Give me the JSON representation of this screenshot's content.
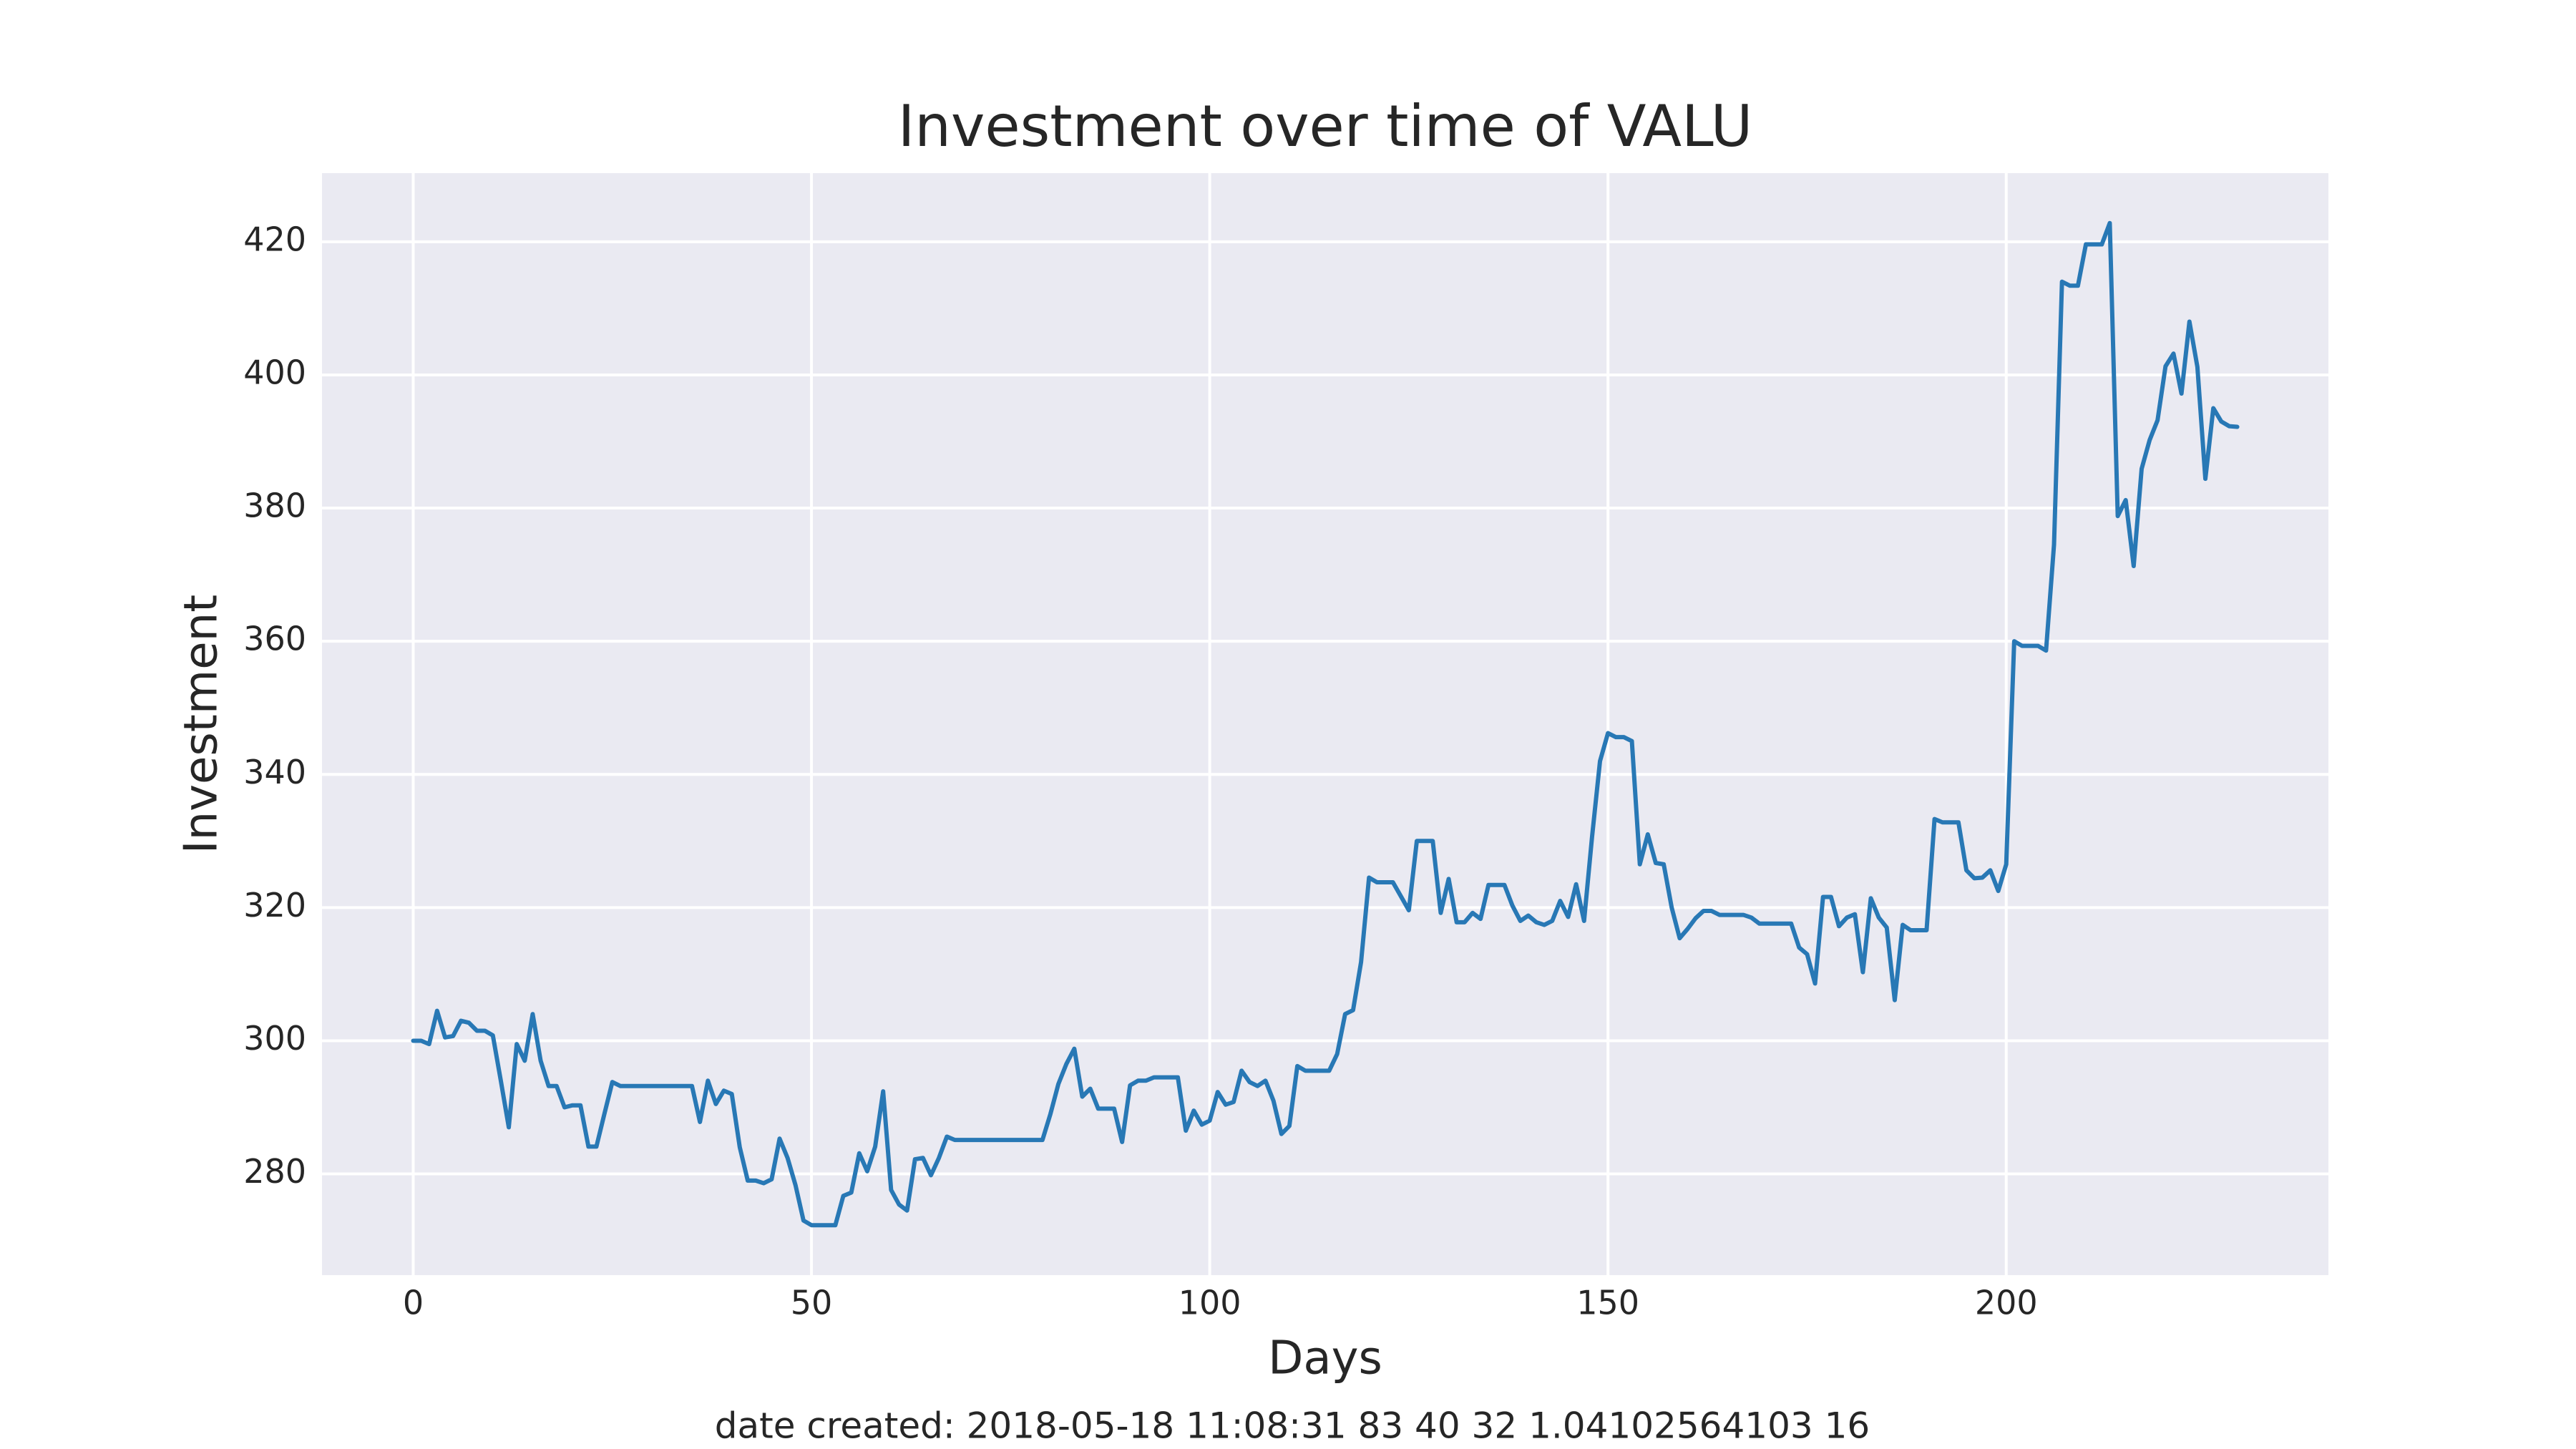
{
  "chart_data": {
    "type": "line",
    "title": "Investment over time of VALU",
    "xlabel": "Days",
    "ylabel": "Investment",
    "annotation": "date created: 2018-05-18 11:08:31 83 40 32 1.04102564103 16",
    "color": "#2878b5",
    "grid": true,
    "xlim": [
      -11.45,
      240.45
    ],
    "ylim": [
      264.8,
      430.3
    ],
    "xticks": [
      0,
      50,
      100,
      150,
      200
    ],
    "yticks": [
      280,
      300,
      320,
      340,
      360,
      380,
      400,
      420
    ],
    "x": [
      0,
      1,
      2,
      3,
      4,
      5,
      6,
      7,
      8,
      9,
      10,
      11,
      12,
      13,
      14,
      15,
      16,
      17,
      18,
      19,
      20,
      21,
      22,
      23,
      24,
      25,
      26,
      27,
      28,
      29,
      30,
      31,
      32,
      33,
      34,
      35,
      36,
      37,
      38,
      39,
      40,
      41,
      42,
      43,
      44,
      45,
      46,
      47,
      48,
      49,
      50,
      51,
      52,
      53,
      54,
      55,
      56,
      57,
      58,
      59,
      60,
      61,
      62,
      63,
      64,
      65,
      66,
      67,
      68,
      69,
      70,
      71,
      72,
      73,
      74,
      75,
      76,
      77,
      78,
      79,
      80,
      81,
      82,
      83,
      84,
      85,
      86,
      87,
      88,
      89,
      90,
      91,
      92,
      93,
      94,
      95,
      96,
      97,
      98,
      99,
      100,
      101,
      102,
      103,
      104,
      105,
      106,
      107,
      108,
      109,
      110,
      111,
      112,
      113,
      114,
      115,
      116,
      117,
      118,
      119,
      120,
      121,
      122,
      123,
      124,
      125,
      126,
      127,
      128,
      129,
      130,
      131,
      132,
      133,
      134,
      135,
      136,
      137,
      138,
      139,
      140,
      141,
      142,
      143,
      144,
      145,
      146,
      147,
      148,
      149,
      150,
      151,
      152,
      153,
      154,
      155,
      156,
      157,
      158,
      159,
      160,
      161,
      162,
      163,
      164,
      165,
      166,
      167,
      168,
      169,
      170,
      171,
      172,
      173,
      174,
      175,
      176,
      177,
      178,
      179,
      180,
      181,
      182,
      183,
      184,
      185,
      186,
      187,
      188,
      189,
      190,
      191,
      192,
      193,
      194,
      195,
      196,
      197,
      198,
      199,
      200,
      201,
      202,
      203,
      204,
      205,
      206,
      207,
      208,
      209,
      210,
      211,
      212,
      213,
      214,
      215,
      216,
      217,
      218,
      219,
      220,
      221,
      222,
      223,
      224,
      225,
      226,
      227,
      228,
      229
    ],
    "values": [
      300,
      300,
      299.5,
      304.5,
      300.5,
      300.7,
      303,
      302.7,
      301.5,
      301.5,
      300.8,
      294,
      287,
      299.5,
      297,
      304,
      297,
      293.2,
      293.2,
      290,
      290.3,
      290.3,
      284.1,
      284.1,
      289,
      293.8,
      293.2,
      293.2,
      293.2,
      293.2,
      293.2,
      293.2,
      293.2,
      293.2,
      293.2,
      293.2,
      287.8,
      294,
      290.5,
      292.5,
      292,
      284,
      279,
      279,
      278.6,
      279.2,
      285.3,
      282.4,
      278.3,
      273,
      272.3,
      272.3,
      272.3,
      272.3,
      276.7,
      277.2,
      283.1,
      280.4,
      284.1,
      292.4,
      277.6,
      275.4,
      274.5,
      282.2,
      282.4,
      279.8,
      282.4,
      285.6,
      285.1,
      285.1,
      285.1,
      285.1,
      285.1,
      285.1,
      285.1,
      285.1,
      285.1,
      285.1,
      285.1,
      285.1,
      289,
      293.5,
      296.5,
      298.8,
      291.6,
      292.8,
      289.8,
      289.8,
      289.8,
      284.8,
      293.3,
      294,
      294,
      294.5,
      294.5,
      294.5,
      294.5,
      286.5,
      289.5,
      287.4,
      288,
      292.3,
      290.4,
      290.8,
      295.5,
      293.8,
      293.2,
      294,
      291,
      286,
      287.2,
      296.2,
      295.5,
      295.5,
      295.5,
      295.5,
      298,
      304,
      304.6,
      311.8,
      324.5,
      323.8,
      323.8,
      323.8,
      321.7,
      319.6,
      330,
      330,
      330,
      319.2,
      324.3,
      317.8,
      317.8,
      319.2,
      318.3,
      323.4,
      323.4,
      323.4,
      320.3,
      318,
      318.8,
      317.8,
      317.4,
      318,
      321,
      318.6,
      323.5,
      318,
      330.6,
      342,
      346.2,
      345.6,
      345.6,
      345,
      326.5,
      331,
      326.7,
      326.5,
      320,
      315.4,
      316.8,
      318.4,
      319.5,
      319.5,
      318.9,
      318.9,
      318.9,
      318.9,
      318.5,
      317.6,
      317.6,
      317.6,
      317.6,
      317.6,
      314,
      313,
      308.6,
      321.6,
      321.6,
      317.2,
      318.5,
      319,
      310.3,
      321.4,
      318.5,
      317,
      306.1,
      317.4,
      316.6,
      316.6,
      316.6,
      333.3,
      332.8,
      332.8,
      332.8,
      325.6,
      324.4,
      324.5,
      325.6,
      322.5,
      326.5,
      360,
      359.3,
      359.3,
      359.3,
      358.6,
      374.5,
      414,
      413.4,
      413.4,
      419.6,
      419.6,
      419.6,
      422.8,
      378.8,
      381.2,
      371.3,
      385.9,
      390.2,
      393.2,
      401.3,
      403.2,
      397.2,
      408,
      401.2,
      384.4,
      395,
      393,
      392.3,
      392.2
    ]
  }
}
